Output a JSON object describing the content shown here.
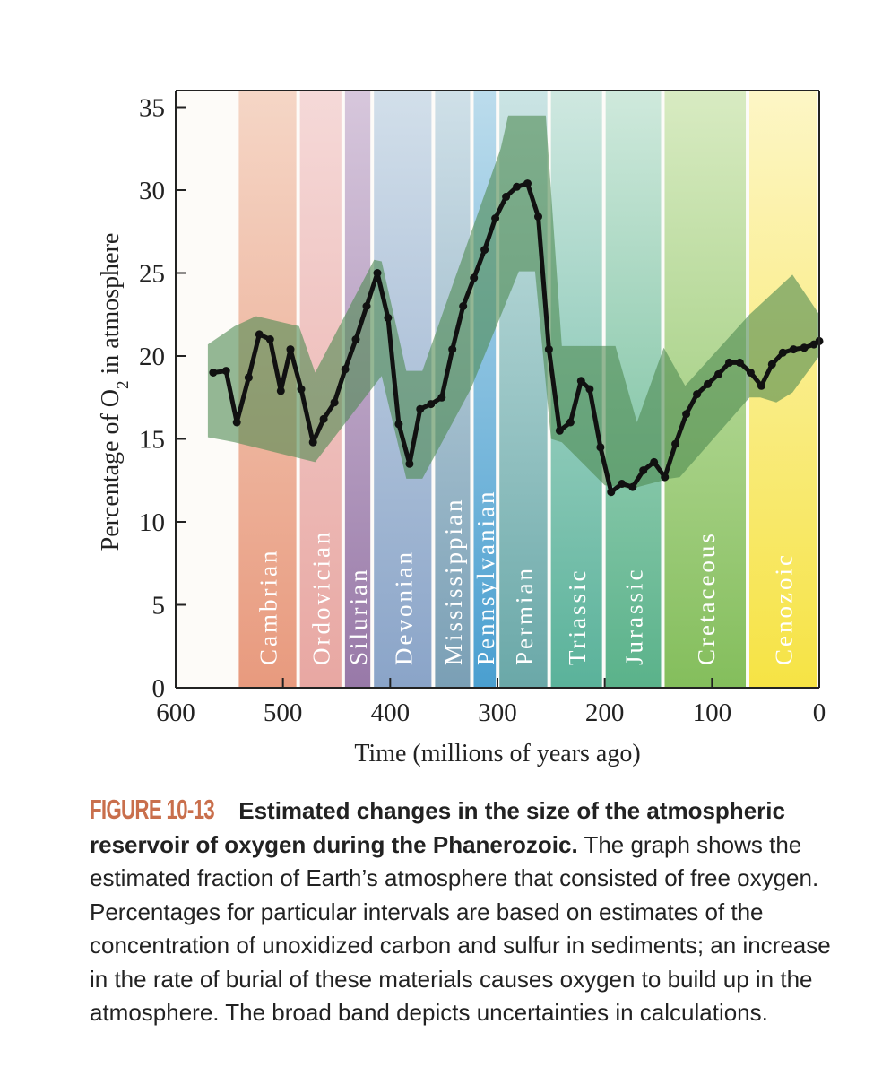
{
  "chart_data": {
    "type": "line",
    "xlabel": "Time (millions of years ago)",
    "ylabel_main": "Percentage of O",
    "ylabel_sub": "2",
    "ylabel_end": " in atmosphere",
    "xlim": [
      600,
      0
    ],
    "ylim": [
      0,
      36
    ],
    "x_ticks": [
      600,
      500,
      400,
      300,
      200,
      100,
      0
    ],
    "y_ticks": [
      0,
      5,
      10,
      15,
      20,
      25,
      30,
      35
    ],
    "x_tick_labels": [
      "600",
      "500",
      "400",
      "300",
      "200",
      "100",
      "0"
    ],
    "y_tick_labels": [
      "0",
      "5",
      "10",
      "15",
      "20",
      "25",
      "30",
      "35"
    ],
    "periods": [
      {
        "name": "Cambrian",
        "start": 542,
        "end": 485,
        "color": "#e89a7e",
        "top_color": "#f5d6c6"
      },
      {
        "name": "Ordovician",
        "start": 485,
        "end": 443,
        "color": "#e8a7a2",
        "top_color": "#f5d9d8"
      },
      {
        "name": "Silurian",
        "start": 443,
        "end": 416,
        "color": "#9879a8",
        "top_color": "#d7c7dc"
      },
      {
        "name": "Devonian",
        "start": 416,
        "end": 359,
        "color": "#8aa4c8",
        "top_color": "#d2dfea"
      },
      {
        "name": "Mississippian",
        "start": 359,
        "end": 323,
        "color": "#7a9fb5",
        "top_color": "#cfe0e8"
      },
      {
        "name": "Pennsylvanian",
        "start": 323,
        "end": 299,
        "color": "#4a9fd0",
        "top_color": "#bcdcec"
      },
      {
        "name": "Permian",
        "start": 299,
        "end": 251,
        "color": "#6aa8a8",
        "top_color": "#cbe4e4"
      },
      {
        "name": "Triassic",
        "start": 251,
        "end": 200,
        "color": "#5ab29a",
        "top_color": "#cfe8e0"
      },
      {
        "name": "Jurassic",
        "start": 200,
        "end": 145,
        "color": "#5ab28a",
        "top_color": "#cfe9dc"
      },
      {
        "name": "Cretaceous",
        "start": 145,
        "end": 66,
        "color": "#84be5c",
        "top_color": "#d8ebc2"
      },
      {
        "name": "Cenozoic",
        "start": 66,
        "end": 0,
        "color": "#f6e344",
        "top_color": "#fdf6c6"
      }
    ],
    "series": [
      {
        "values_x": [
          565,
          553,
          543,
          532,
          522,
          512,
          502,
          493,
          483,
          472,
          462,
          452,
          442,
          432,
          422,
          412,
          402,
          392,
          382,
          372,
          362,
          352,
          342,
          332,
          322,
          312,
          302,
          292,
          282,
          272,
          262,
          252,
          242,
          232,
          222,
          214,
          204,
          194,
          184,
          174,
          164,
          154,
          144,
          134,
          124,
          114,
          104,
          94,
          84,
          74,
          64,
          54,
          44,
          34,
          24,
          14,
          5,
          0
        ],
        "values_y": [
          19.0,
          19.1,
          16.0,
          18.7,
          21.3,
          21.0,
          17.9,
          20.4,
          18.0,
          14.8,
          16.2,
          17.2,
          19.2,
          21.0,
          23.0,
          25.0,
          22.3,
          15.9,
          13.5,
          16.8,
          17.1,
          17.5,
          20.4,
          23.0,
          24.7,
          26.4,
          28.3,
          29.6,
          30.2,
          30.4,
          28.4,
          20.4,
          15.5,
          16.0,
          18.5,
          18.0,
          14.5,
          11.8,
          12.3,
          12.1,
          13.1,
          13.6,
          12.7,
          14.7,
          16.5,
          17.7,
          18.3,
          18.9,
          19.6,
          19.6,
          19.0,
          18.2,
          19.5,
          20.2,
          20.4,
          20.5,
          20.7,
          20.9
        ]
      }
    ],
    "uncertainty_band": {
      "upper_x": [
        570,
        545,
        525,
        485,
        470,
        415,
        408,
        385,
        370,
        297,
        290,
        255,
        240,
        190,
        170,
        145,
        125,
        65,
        25,
        0
      ],
      "upper_y": [
        20.7,
        21.8,
        22.4,
        21.8,
        19.0,
        25.8,
        25.7,
        19.1,
        19.1,
        32.5,
        34.5,
        34.5,
        20.6,
        20.6,
        16.0,
        20.5,
        18.2,
        22.5,
        24.9,
        22.5
      ],
      "lower_x": [
        0,
        25,
        40,
        55,
        65,
        130,
        140,
        175,
        200,
        240,
        250,
        265,
        280,
        325,
        370,
        385,
        408,
        470,
        545,
        570
      ],
      "lower_y": [
        20.0,
        17.8,
        17.2,
        17.5,
        17.5,
        12.7,
        12.6,
        12.0,
        12.2,
        14.8,
        15.0,
        25.1,
        25.1,
        18.0,
        12.6,
        12.6,
        18.8,
        13.6,
        14.8,
        15.1
      ]
    },
    "colors": {
      "line": "#111111",
      "band": "#4e8a52",
      "band_opacity": 0.6
    }
  },
  "caption": {
    "figure_number": "FIGURE 10-13",
    "title": "Estimated changes in the size of the atmospheric reservoir of oxygen during the Phanerozoic.",
    "body": "The graph shows the estimated fraction of Earth’s atmosphere that consisted of free oxygen. Percentages for particular intervals are based on estimates of the concentration of unoxidized carbon and sulfur in sediments; an increase in the rate of burial of these materials causes oxygen to build up in the atmosphere. The broad band depicts uncertainties in calculations."
  }
}
